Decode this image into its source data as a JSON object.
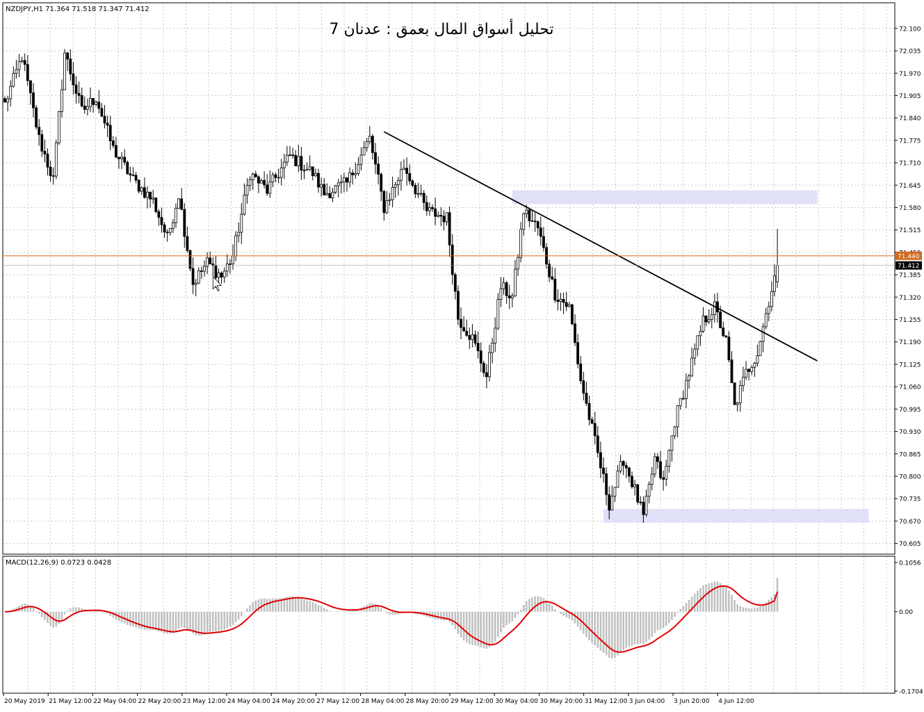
{
  "header": {
    "symbol_info": "NZDJPY,H1  71.364 71.518 71.347 71.412",
    "title": "تحليل أسواق المال بعمق : عدنان 7"
  },
  "colors": {
    "background": "#ffffff",
    "grid": "#c8c8c8",
    "candle": "#000000",
    "trendline": "#000000",
    "zone": "#e0e0f8",
    "ask_line": "#d2691e",
    "macd_histogram": "#c0c0c0",
    "macd_signal": "#e00000"
  },
  "chart_data": [
    {
      "type": "candlestick",
      "name": "NZDJPY,H1",
      "ohlc_last": {
        "open": 71.364,
        "high": 71.518,
        "low": 71.347,
        "close": 71.412
      },
      "ylim": [
        70.59,
        72.13
      ],
      "y_ticks": [
        72.1,
        72.035,
        71.97,
        71.905,
        71.84,
        71.775,
        71.71,
        71.645,
        71.58,
        71.515,
        71.45,
        71.385,
        71.32,
        71.255,
        71.19,
        71.125,
        71.06,
        70.995,
        70.93,
        70.865,
        70.8,
        70.735,
        70.67,
        70.605
      ],
      "y_tick_labels": [
        "72.100",
        "72.035",
        "71.970",
        "71.905",
        "71.840",
        "71.775",
        "71.710",
        "71.645",
        "71.580",
        "71.515",
        "71.450",
        "71.385",
        "71.320",
        "71.255",
        "71.190",
        "71.125",
        "71.060",
        "70.995",
        "70.930",
        "70.865",
        "70.800",
        "70.735",
        "70.670",
        "70.605"
      ],
      "price_labels": {
        "ask": "71.440",
        "bid": "71.412"
      },
      "price_levels": {
        "ask": 71.44,
        "bid": 71.412
      },
      "x_labels": [
        "20 May 2019",
        "21 May 12:00",
        "22 May 04:00",
        "22 May 20:00",
        "23 May 12:00",
        "24 May 04:00",
        "24 May 20:00",
        "27 May 12:00",
        "28 May 04:00",
        "28 May 20:00",
        "29 May 12:00",
        "30 May 04:00",
        "30 May 20:00",
        "31 May 12:00",
        "3 Jun 04:00",
        "3 Jun 20:00",
        "4 Jun 12:00"
      ],
      "key_points": [
        [
          0,
          71.88
        ],
        [
          6,
          72.02
        ],
        [
          12,
          71.78
        ],
        [
          17,
          71.66
        ],
        [
          21,
          72.03
        ],
        [
          27,
          71.86
        ],
        [
          32,
          71.9
        ],
        [
          38,
          71.75
        ],
        [
          45,
          71.66
        ],
        [
          52,
          71.6
        ],
        [
          57,
          71.49
        ],
        [
          61,
          71.62
        ],
        [
          66,
          71.36
        ],
        [
          71,
          71.42
        ],
        [
          76,
          71.38
        ],
        [
          80,
          71.44
        ],
        [
          86,
          71.68
        ],
        [
          92,
          71.63
        ],
        [
          100,
          71.73
        ],
        [
          108,
          71.68
        ],
        [
          112,
          71.62
        ],
        [
          120,
          71.65
        ],
        [
          128,
          71.78
        ],
        [
          133,
          71.58
        ],
        [
          140,
          71.7
        ],
        [
          148,
          71.57
        ],
        [
          155,
          71.55
        ],
        [
          159,
          71.26
        ],
        [
          164,
          71.2
        ],
        [
          169,
          71.09
        ],
        [
          174,
          71.35
        ],
        [
          178,
          71.32
        ],
        [
          182,
          71.57
        ],
        [
          187,
          71.52
        ],
        [
          193,
          71.33
        ],
        [
          198,
          71.29
        ],
        [
          202,
          71.08
        ],
        [
          207,
          70.9
        ],
        [
          212,
          70.72
        ],
        [
          217,
          70.85
        ],
        [
          221,
          70.76
        ],
        [
          224,
          70.68
        ],
        [
          228,
          70.85
        ],
        [
          231,
          70.78
        ],
        [
          235,
          70.96
        ],
        [
          240,
          71.1
        ],
        [
          245,
          71.25
        ],
        [
          249,
          71.29
        ],
        [
          253,
          71.19
        ],
        [
          256,
          71.0
        ],
        [
          260,
          71.1
        ],
        [
          264,
          71.16
        ],
        [
          268,
          71.31
        ],
        [
          271,
          71.41
        ]
      ],
      "n_candles": 272,
      "trendline": {
        "x1": 133,
        "y1": 71.8,
        "x2": 285,
        "y2": 71.135
      },
      "zones": [
        {
          "x1": 178,
          "x2": 285,
          "y_top": 71.63,
          "y_bottom": 71.59
        },
        {
          "x1": 210,
          "x2": 303,
          "y_top": 70.705,
          "y_bottom": 70.665
        }
      ],
      "cursor": {
        "x": 73,
        "y": 71.38
      }
    },
    {
      "type": "bar",
      "name": "MACD(12,26,9)",
      "label": "MACD(12,26,9) 0.0723 0.0428",
      "macd_value": 0.0723,
      "signal_value": 0.0428,
      "ylim": [
        -0.172,
        0.107
      ],
      "y_ticks": [
        0.1056,
        0.0,
        -0.1704
      ],
      "y_tick_labels": [
        "0.1056",
        "0.00",
        "-0.1704"
      ]
    }
  ]
}
